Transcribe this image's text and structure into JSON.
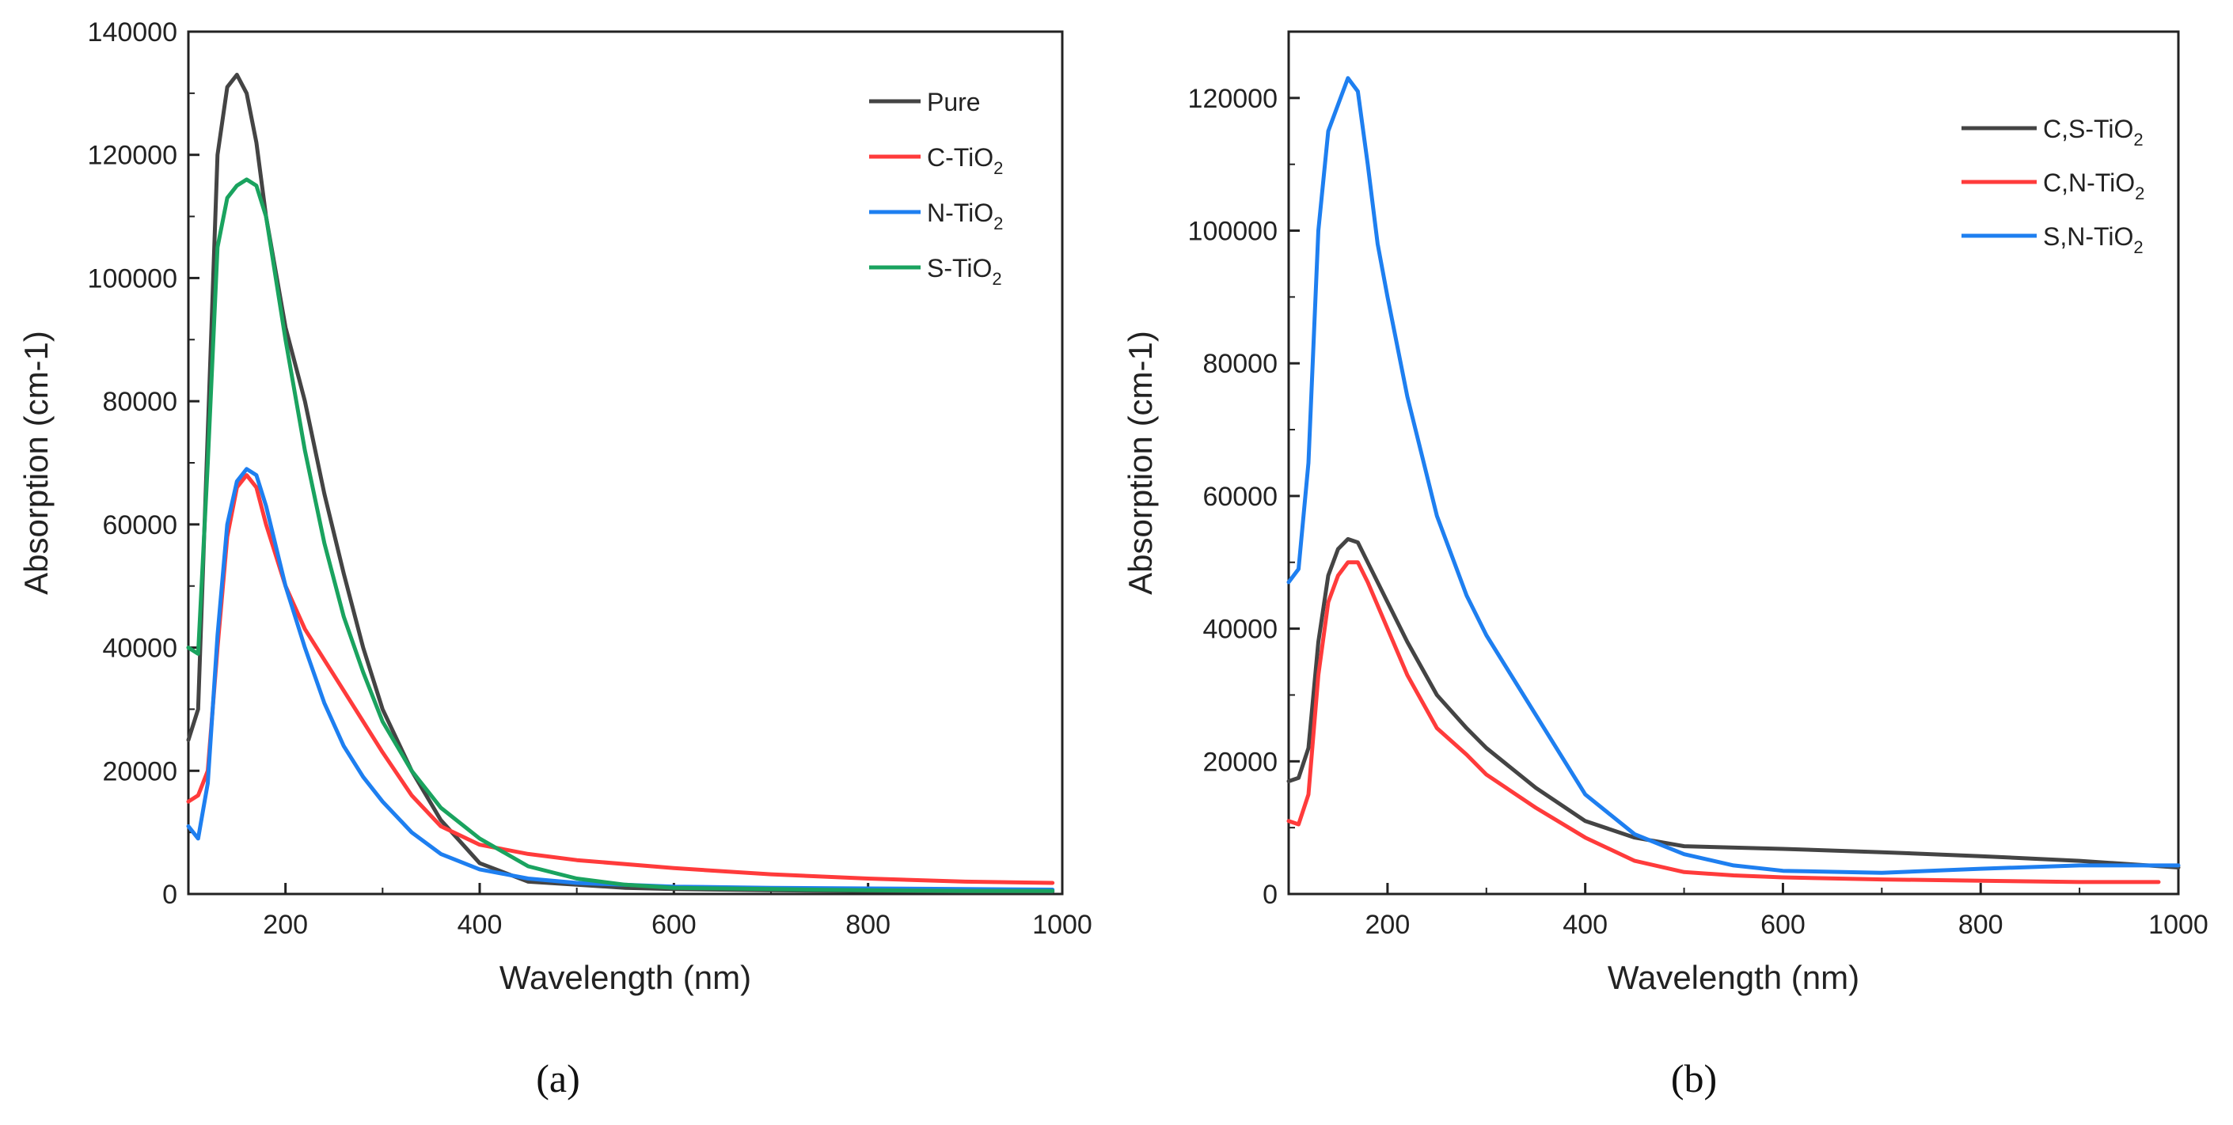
{
  "colors": {
    "black": "#444444",
    "red": "#ff3b3b",
    "blue": "#1e7ff0",
    "green": "#1aa35f"
  },
  "chart_data": [
    {
      "type": "line",
      "panel": "a",
      "caption": "(a)",
      "xlabel": "Wavelength (nm)",
      "ylabel": "Absorption (cm-1)",
      "xlim": [
        100,
        1000
      ],
      "ylim": [
        0,
        140000
      ],
      "xticks": [
        200,
        400,
        600,
        800,
        1000
      ],
      "xtick_labels": [
        "200",
        "400",
        "600",
        "800",
        "1000"
      ],
      "yticks": [
        0,
        20000,
        40000,
        60000,
        80000,
        100000,
        120000,
        140000
      ],
      "ytick_labels": [
        "0",
        "20000",
        "40000",
        "60000",
        "80000",
        "100000",
        "120000",
        "140000"
      ],
      "legend_position": "top-right",
      "series": [
        {
          "name": "Pure",
          "label_main": "Pure",
          "label_sub": "",
          "label_tail": "",
          "color": "#444444",
          "x": [
            100,
            110,
            120,
            130,
            140,
            150,
            160,
            170,
            180,
            200,
            220,
            240,
            260,
            280,
            300,
            330,
            360,
            400,
            450,
            500,
            550,
            600,
            700,
            800,
            900,
            990
          ],
          "y": [
            25000,
            30000,
            75000,
            120000,
            131000,
            133000,
            130000,
            122000,
            110000,
            92000,
            80000,
            65000,
            52000,
            40000,
            30000,
            20000,
            12000,
            5000,
            2000,
            1500,
            1000,
            800,
            600,
            500,
            400,
            400
          ]
        },
        {
          "name": "C-TiO2",
          "label_main": "C-TiO",
          "label_sub": "2",
          "label_tail": "",
          "color": "#ff3b3b",
          "x": [
            100,
            110,
            120,
            130,
            140,
            150,
            160,
            170,
            180,
            200,
            220,
            240,
            260,
            280,
            300,
            330,
            360,
            400,
            450,
            500,
            600,
            700,
            800,
            900,
            990
          ],
          "y": [
            15000,
            16000,
            20000,
            40000,
            58000,
            66000,
            68000,
            66000,
            60000,
            50000,
            43000,
            38000,
            33000,
            28000,
            23000,
            16000,
            11000,
            8000,
            6500,
            5500,
            4200,
            3200,
            2500,
            2000,
            1800
          ]
        },
        {
          "name": "N-TiO2",
          "label_main": "N-TiO",
          "label_sub": "2",
          "label_tail": "",
          "color": "#1e7ff0",
          "x": [
            100,
            110,
            120,
            130,
            140,
            150,
            160,
            170,
            180,
            200,
            220,
            240,
            260,
            280,
            300,
            330,
            360,
            400,
            450,
            500,
            600,
            700,
            800,
            900,
            990
          ],
          "y": [
            11000,
            9000,
            18000,
            42000,
            60000,
            67000,
            69000,
            68000,
            63000,
            50000,
            40000,
            31000,
            24000,
            19000,
            15000,
            10000,
            6500,
            4000,
            2500,
            1800,
            1200,
            1000,
            900,
            800,
            700
          ]
        },
        {
          "name": "S-TiO2",
          "label_main": "S-TiO",
          "label_sub": "2",
          "label_tail": "",
          "color": "#1aa35f",
          "x": [
            100,
            110,
            120,
            130,
            140,
            150,
            160,
            170,
            180,
            200,
            220,
            240,
            260,
            280,
            300,
            330,
            360,
            400,
            450,
            500,
            550,
            600,
            700,
            800,
            900,
            990
          ],
          "y": [
            40000,
            39000,
            70000,
            105000,
            113000,
            115000,
            116000,
            115000,
            110000,
            90000,
            72000,
            57000,
            45000,
            36000,
            28000,
            20000,
            14000,
            9000,
            4500,
            2500,
            1500,
            1000,
            800,
            600,
            500,
            500
          ]
        }
      ]
    },
    {
      "type": "line",
      "panel": "b",
      "caption": "(b)",
      "xlabel": "Wavelength (nm)",
      "ylabel": "Absorption (cm-1)",
      "xlim": [
        100,
        1000
      ],
      "ylim": [
        0,
        130000
      ],
      "xticks": [
        200,
        400,
        600,
        800,
        1000
      ],
      "xtick_labels": [
        "200",
        "400",
        "600",
        "800",
        "1000"
      ],
      "yticks": [
        0,
        20000,
        40000,
        60000,
        80000,
        100000,
        120000
      ],
      "ytick_labels": [
        "0",
        "20000",
        "40000",
        "60000",
        "80000",
        "100000",
        "120000"
      ],
      "legend_position": "top-right",
      "series": [
        {
          "name": "C,S-TiO2",
          "label_main": "C,S-TiO",
          "label_sub": "2",
          "label_tail": "",
          "color": "#444444",
          "x": [
            100,
            110,
            120,
            130,
            140,
            150,
            160,
            170,
            180,
            200,
            220,
            250,
            280,
            300,
            350,
            400,
            450,
            500,
            600,
            700,
            800,
            900,
            1000
          ],
          "y": [
            17000,
            17500,
            22000,
            38000,
            48000,
            52000,
            53500,
            53000,
            50000,
            44000,
            38000,
            30000,
            25000,
            22000,
            16000,
            11000,
            8500,
            7200,
            6800,
            6300,
            5700,
            5000,
            4000
          ]
        },
        {
          "name": "C,N-TiO2",
          "label_main": "C,N-TiO",
          "label_sub": "2",
          "label_tail": "",
          "color": "#ff3b3b",
          "x": [
            100,
            110,
            120,
            130,
            140,
            150,
            160,
            170,
            180,
            200,
            220,
            250,
            280,
            300,
            350,
            400,
            450,
            500,
            550,
            600,
            700,
            800,
            900,
            980
          ],
          "y": [
            11000,
            10500,
            15000,
            33000,
            44000,
            48000,
            50000,
            50000,
            47000,
            40000,
            33000,
            25000,
            21000,
            18000,
            13000,
            8500,
            5000,
            3300,
            2800,
            2500,
            2200,
            2000,
            1800,
            1800
          ]
        },
        {
          "name": "S,N-TiO2",
          "label_main": "S,N-TiO",
          "label_sub": "2",
          "label_tail": "",
          "color": "#1e7ff0",
          "x": [
            100,
            110,
            120,
            130,
            140,
            150,
            160,
            170,
            180,
            190,
            200,
            220,
            250,
            280,
            300,
            350,
            400,
            450,
            500,
            550,
            600,
            700,
            800,
            900,
            1000
          ],
          "y": [
            47000,
            49000,
            65000,
            100000,
            115000,
            119000,
            123000,
            121000,
            110000,
            98000,
            90000,
            75000,
            57000,
            45000,
            39000,
            27000,
            15000,
            9000,
            6000,
            4300,
            3500,
            3200,
            3800,
            4300,
            4300
          ]
        }
      ]
    }
  ]
}
